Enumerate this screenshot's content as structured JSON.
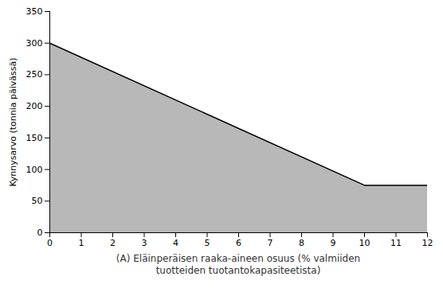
{
  "chart_data": {
    "type": "area",
    "x": [
      0,
      10,
      12
    ],
    "values": [
      300,
      75,
      75
    ],
    "color": "#b8b8b8",
    "xlabel": "(A) Eläinperäisen raaka-aineen osuus (% valmiiden\ntuotteiden tuotantokapasiteetista)",
    "ylabel": "Kynnysarvo (tonnia päivässä)",
    "xlim": [
      0,
      12
    ],
    "ylim": [
      0,
      350
    ],
    "xticks": [
      0,
      1,
      2,
      3,
      4,
      5,
      6,
      7,
      8,
      9,
      10,
      11,
      12
    ],
    "yticks": [
      0,
      50,
      100,
      150,
      200,
      250,
      300,
      350
    ],
    "grid": false
  }
}
